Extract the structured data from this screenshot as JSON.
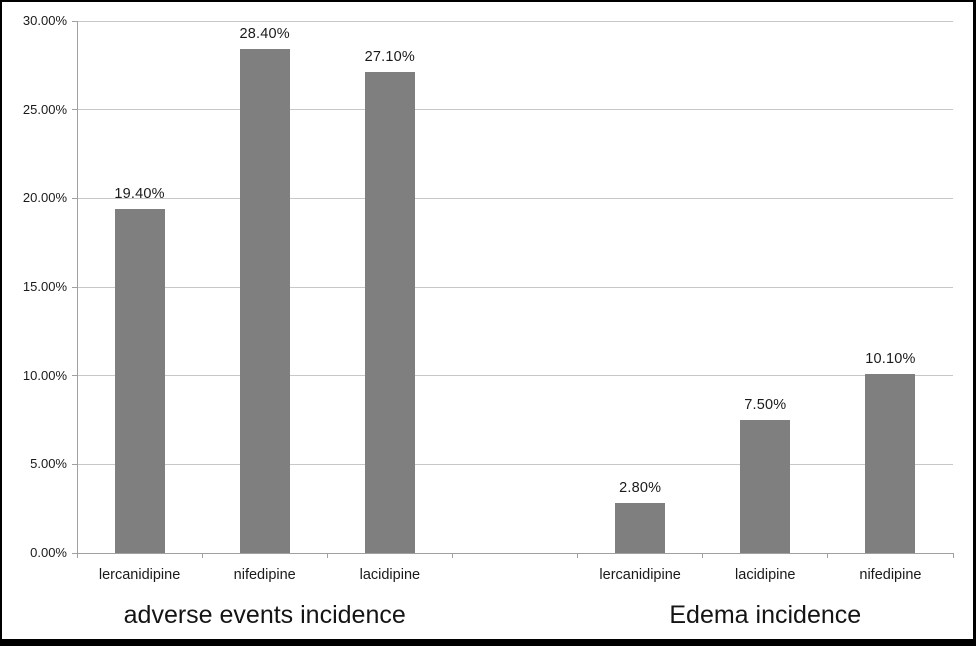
{
  "chart_data": {
    "type": "bar",
    "title": "",
    "xlabel": "",
    "ylabel": "",
    "ylim": [
      0,
      30
    ],
    "ytick_step": 5,
    "ytick_labels": [
      "0.00%",
      "5.00%",
      "10.00%",
      "15.00%",
      "20.00%",
      "25.00%",
      "30.00%"
    ],
    "grid": true,
    "legend_position": "none",
    "bar_color": "#7f7f7f",
    "gridline_color": "#c8c8c8",
    "axis_color": "#a0a0a0",
    "text_color": "#1a1a1a",
    "gap_slots_between_groups": 1,
    "groups": [
      {
        "label": "adverse events incidence",
        "items": [
          {
            "category": "lercanidipine",
            "value": 19.4,
            "value_label": "19.40%"
          },
          {
            "category": "nifedipine",
            "value": 28.4,
            "value_label": "28.40%"
          },
          {
            "category": "lacidipine",
            "value": 27.1,
            "value_label": "27.10%"
          }
        ]
      },
      {
        "label": "Edema incidence",
        "items": [
          {
            "category": "lercanidipine",
            "value": 2.8,
            "value_label": "2.80%"
          },
          {
            "category": "lacidipine",
            "value": 7.5,
            "value_label": "7.50%"
          },
          {
            "category": "nifedipine",
            "value": 10.1,
            "value_label": "10.10%"
          }
        ]
      }
    ]
  }
}
